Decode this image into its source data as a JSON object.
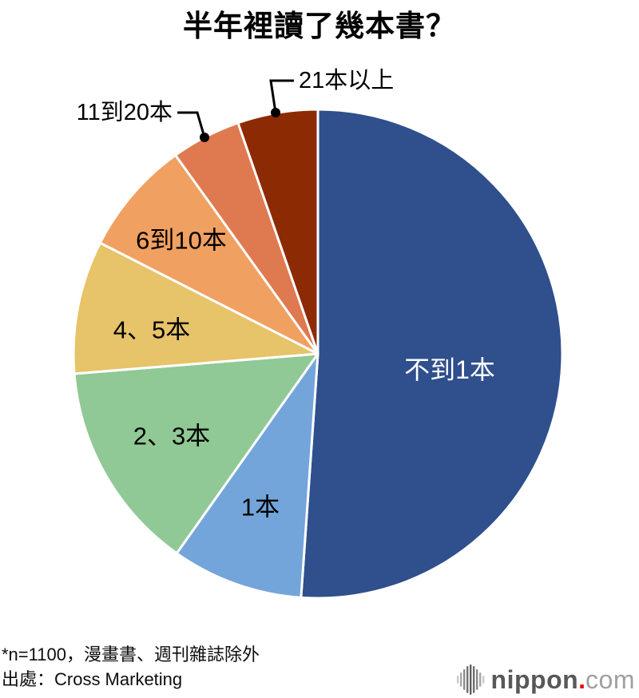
{
  "title": "半年裡讀了幾本書？",
  "chart_data": {
    "type": "pie",
    "title": "半年裡讀了幾本書？",
    "labels": [
      "不到1本",
      "1本",
      "2、3本",
      "4、5本",
      "6到10本",
      "11到20本",
      "21本以上"
    ],
    "values": [
      51.1,
      8.7,
      13.9,
      8.8,
      7.6,
      4.6,
      5.3
    ],
    "values_estimated_from_slice_angles": true,
    "colors": [
      "#2f4f8d",
      "#73a5da",
      "#90c995",
      "#e7c369",
      "#f0a061",
      "#df7950",
      "#8c2a04"
    ],
    "label_text_colors": [
      "#ffffff",
      "#000000",
      "#000000",
      "#000000",
      "#000000",
      "#000000",
      "#000000"
    ],
    "start_angle_deg": 0,
    "direction": "clockwise",
    "legend_position": "none",
    "slice_border_color": "#ffffff"
  },
  "footnote": {
    "line1": "*n=1100，漫畫書、週刊雜誌除外",
    "line2": "出處：Cross Marketing"
  },
  "logo": {
    "name": "nippon",
    "dot": ".",
    "tld": "com",
    "icon": "soundwave-bars-icon",
    "brand_gray": "#595757",
    "dot_red": "#e60012",
    "tld_gray": "#9fa0a0"
  }
}
